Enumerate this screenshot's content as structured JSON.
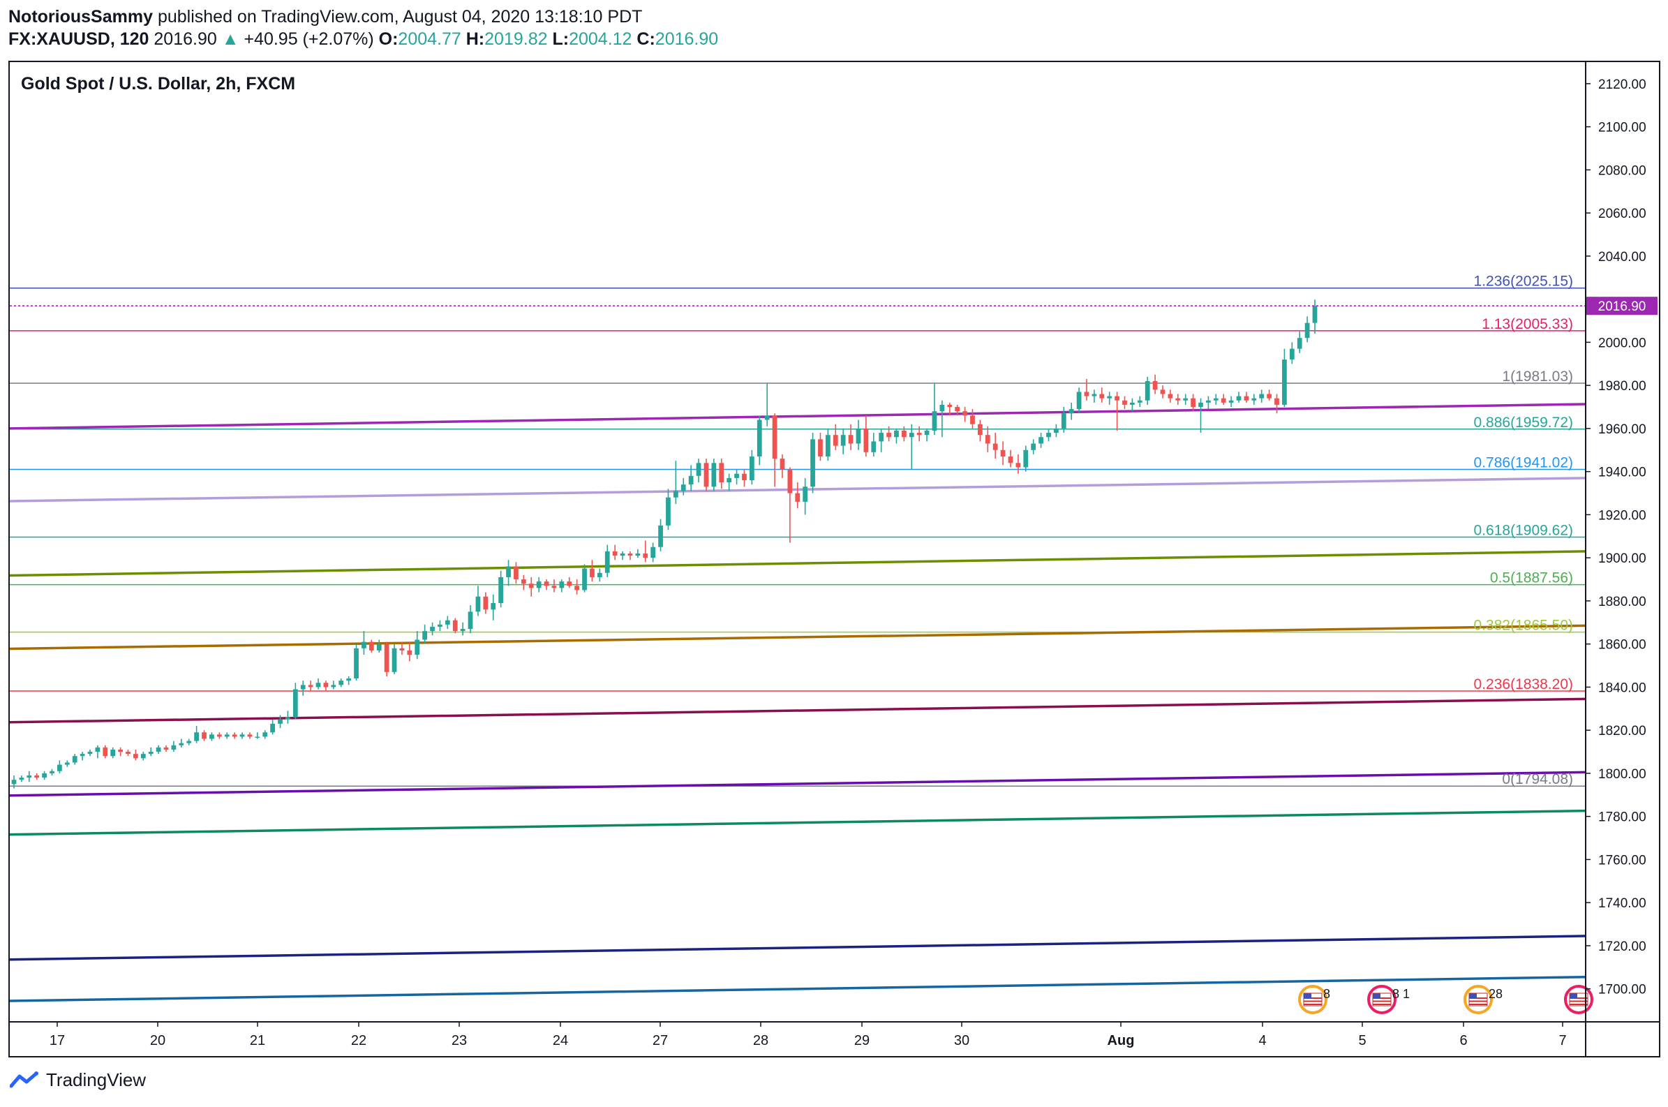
{
  "header": {
    "author": "NotoriousSammy",
    "published_text": "published on TradingView.com, August 04, 2020 13:18:10 PDT",
    "symbol": "FX:XAUUSD, 120",
    "last": "2016.90",
    "change_arrow": "▲",
    "change": "+40.95 (+2.07%)",
    "o_label": "O:",
    "o": "2004.77",
    "h_label": "H:",
    "h": "2019.82",
    "l_label": "L:",
    "l": "2004.12",
    "c_label": "C:",
    "c": "2016.90"
  },
  "chart_title": "Gold Spot / U.S. Dollar, 2h, FXCM",
  "footer": {
    "brand": "TradingView",
    "logo_icon": "tradingview-logo-icon"
  },
  "colors": {
    "up": "#26a69a",
    "down": "#ef5350",
    "price_label": "#9c27b0"
  },
  "chart_data": {
    "type": "candlestick",
    "title": "Gold Spot / U.S. Dollar, 2h, FXCM",
    "ylim": [
      1685,
      2130
    ],
    "y_ticks": [
      "2120.00",
      "2100.00",
      "2080.00",
      "2060.00",
      "2040.00",
      "2020.00",
      "2000.00",
      "1980.00",
      "1960.00",
      "1940.00",
      "1920.00",
      "1900.00",
      "1880.00",
      "1860.00",
      "1840.00",
      "1820.00",
      "1800.00",
      "1780.00",
      "1760.00",
      "1740.00",
      "1720.00",
      "1700.00"
    ],
    "x_ticks": [
      "17",
      "20",
      "21",
      "22",
      "23",
      "24",
      "27",
      "28",
      "29",
      "30",
      "Aug",
      "4",
      "5",
      "6",
      "7"
    ],
    "current_price": "2016.90",
    "current_price_color": "#9c27b0",
    "fib_levels": [
      {
        "label": "1.236(2025.15)",
        "value": 2025.15,
        "color": "#3f51b5"
      },
      {
        "label": "1.13(2005.33)",
        "value": 2005.33,
        "color": "#e91e63"
      },
      {
        "label": "1(1981.03)",
        "value": 1981.03,
        "color": "#787b86"
      },
      {
        "label": "0.886(1959.72)",
        "value": 1959.72,
        "color": "#26a69a"
      },
      {
        "label": "0.786(1941.02)",
        "value": 1941.02,
        "color": "#2196f3"
      },
      {
        "label": "0.618(1909.62)",
        "value": 1909.62,
        "color": "#26a69a"
      },
      {
        "label": "0.5(1887.56)",
        "value": 1887.56,
        "color": "#4caf50"
      },
      {
        "label": "0.382(1865.50)",
        "value": 1865.5,
        "color": "#9cca3b"
      },
      {
        "label": "0.236(1838.20)",
        "value": 1838.2,
        "color": "#f23645"
      },
      {
        "label": "0(1794.08)",
        "value": 1794.08,
        "color": "#787b86"
      }
    ],
    "trend_lines": [
      {
        "start": 1960,
        "end": 1971.3,
        "color": "#9c27b0"
      },
      {
        "start": 1926.3,
        "end": 1937,
        "color": "#b39ddb"
      },
      {
        "start": 1891.8,
        "end": 1903,
        "color": "#6b8e00"
      },
      {
        "start": 1857.8,
        "end": 1868.5,
        "color": "#a86b00"
      },
      {
        "start": 1823.7,
        "end": 1834.5,
        "color": "#880e4f"
      },
      {
        "start": 1789.7,
        "end": 1800.5,
        "color": "#6a0dad"
      },
      {
        "start": 1771.6,
        "end": 1782.6,
        "color": "#0b8a62"
      },
      {
        "start": 1713.6,
        "end": 1724.5,
        "color": "#1a237e"
      },
      {
        "start": 1694.4,
        "end": 1705.5,
        "color": "#1565a0"
      }
    ],
    "event_icons": [
      {
        "name": "us-flag-icon",
        "text": "8",
        "color": "#f5a623"
      },
      {
        "name": "us-flag-icon",
        "text": "8 1",
        "color": "#e91e63"
      },
      {
        "name": "us-flag-icon",
        "text": "28",
        "color": "#f5a623"
      },
      {
        "name": "us-flag-icon",
        "text": "",
        "color": "#e91e63"
      }
    ],
    "ohlc": [
      [
        1795,
        1799,
        1793,
        1797
      ],
      [
        1797,
        1799,
        1796,
        1798
      ],
      [
        1798,
        1801,
        1796,
        1799
      ],
      [
        1799,
        1800,
        1797,
        1798
      ],
      [
        1798,
        1801,
        1797,
        1800
      ],
      [
        1800,
        1802,
        1799,
        1801
      ],
      [
        1801,
        1806,
        1800,
        1804
      ],
      [
        1804,
        1806,
        1803,
        1805
      ],
      [
        1805,
        1809,
        1804,
        1808
      ],
      [
        1808,
        1810,
        1806,
        1809
      ],
      [
        1809,
        1811,
        1808,
        1810
      ],
      [
        1810,
        1813,
        1807,
        1812
      ],
      [
        1812,
        1813,
        1807,
        1808
      ],
      [
        1808,
        1812,
        1807,
        1811
      ],
      [
        1811,
        1812,
        1808,
        1810
      ],
      [
        1810,
        1811,
        1808,
        1809
      ],
      [
        1809,
        1811,
        1806,
        1807
      ],
      [
        1807,
        1810,
        1806,
        1809
      ],
      [
        1809,
        1812,
        1808,
        1810
      ],
      [
        1810,
        1813,
        1809,
        1812
      ],
      [
        1812,
        1813,
        1810,
        1811
      ],
      [
        1811,
        1815,
        1810,
        1813
      ],
      [
        1813,
        1816,
        1812,
        1814
      ],
      [
        1814,
        1816,
        1813,
        1815
      ],
      [
        1815,
        1822,
        1814,
        1819
      ],
      [
        1819,
        1820,
        1815,
        1816
      ],
      [
        1816,
        1819,
        1815,
        1818
      ],
      [
        1818,
        1819,
        1816,
        1817
      ],
      [
        1817,
        1819,
        1816,
        1818
      ],
      [
        1818,
        1819,
        1816,
        1817
      ],
      [
        1817,
        1819,
        1816,
        1818
      ],
      [
        1818,
        1819,
        1816,
        1817
      ],
      [
        1817,
        1819,
        1816,
        1817
      ],
      [
        1817,
        1820,
        1816,
        1819
      ],
      [
        1819,
        1825,
        1818,
        1823
      ],
      [
        1823,
        1827,
        1821,
        1825
      ],
      [
        1825,
        1829,
        1823,
        1826
      ],
      [
        1826,
        1842,
        1825,
        1839
      ],
      [
        1839,
        1843,
        1836,
        1841
      ],
      [
        1841,
        1843,
        1838,
        1840
      ],
      [
        1840,
        1844,
        1839,
        1842
      ],
      [
        1842,
        1843,
        1838,
        1840
      ],
      [
        1840,
        1843,
        1839,
        1841
      ],
      [
        1841,
        1844,
        1840,
        1843
      ],
      [
        1843,
        1845,
        1841,
        1844
      ],
      [
        1844,
        1860,
        1843,
        1858
      ],
      [
        1858,
        1866,
        1855,
        1861
      ],
      [
        1861,
        1862,
        1856,
        1857
      ],
      [
        1857,
        1862,
        1856,
        1860
      ],
      [
        1860,
        1861,
        1845,
        1847
      ],
      [
        1847,
        1860,
        1846,
        1858
      ],
      [
        1858,
        1861,
        1855,
        1857
      ],
      [
        1857,
        1861,
        1852,
        1855
      ],
      [
        1855,
        1866,
        1853,
        1862
      ],
      [
        1862,
        1869,
        1860,
        1866
      ],
      [
        1866,
        1870,
        1864,
        1868
      ],
      [
        1868,
        1871,
        1866,
        1869
      ],
      [
        1869,
        1873,
        1867,
        1871
      ],
      [
        1871,
        1872,
        1865,
        1866
      ],
      [
        1866,
        1870,
        1864,
        1867
      ],
      [
        1867,
        1878,
        1865,
        1875
      ],
      [
        1875,
        1887,
        1873,
        1882
      ],
      [
        1882,
        1884,
        1874,
        1876
      ],
      [
        1876,
        1883,
        1871,
        1879
      ],
      [
        1879,
        1894,
        1877,
        1891
      ],
      [
        1891,
        1899,
        1887,
        1896
      ],
      [
        1896,
        1898,
        1888,
        1890
      ],
      [
        1890,
        1892,
        1885,
        1888
      ],
      [
        1888,
        1891,
        1882,
        1886
      ],
      [
        1886,
        1891,
        1884,
        1889
      ],
      [
        1889,
        1890,
        1885,
        1887
      ],
      [
        1887,
        1890,
        1884,
        1886
      ],
      [
        1886,
        1890,
        1884,
        1889
      ],
      [
        1889,
        1891,
        1886,
        1887
      ],
      [
        1887,
        1890,
        1883,
        1885
      ],
      [
        1885,
        1897,
        1884,
        1895
      ],
      [
        1895,
        1899,
        1889,
        1891
      ],
      [
        1891,
        1895,
        1889,
        1893
      ],
      [
        1893,
        1906,
        1891,
        1903
      ],
      [
        1903,
        1906,
        1899,
        1901
      ],
      [
        1901,
        1903,
        1899,
        1902
      ],
      [
        1902,
        1903,
        1899,
        1901
      ],
      [
        1901,
        1904,
        1900,
        1902
      ],
      [
        1902,
        1908,
        1898,
        1900
      ],
      [
        1900,
        1907,
        1898,
        1905
      ],
      [
        1905,
        1918,
        1903,
        1915
      ],
      [
        1915,
        1932,
        1913,
        1928
      ],
      [
        1928,
        1945,
        1925,
        1931
      ],
      [
        1931,
        1937,
        1929,
        1934
      ],
      [
        1934,
        1943,
        1931,
        1938
      ],
      [
        1938,
        1946,
        1935,
        1944
      ],
      [
        1944,
        1946,
        1931,
        1933
      ],
      [
        1933,
        1946,
        1931,
        1944
      ],
      [
        1944,
        1946,
        1932,
        1935
      ],
      [
        1935,
        1939,
        1931,
        1937
      ],
      [
        1937,
        1941,
        1934,
        1939
      ],
      [
        1939,
        1941,
        1933,
        1936
      ],
      [
        1936,
        1950,
        1934,
        1947
      ],
      [
        1947,
        1966,
        1943,
        1964
      ],
      [
        1964,
        1981,
        1961,
        1966
      ],
      [
        1966,
        1967,
        1933,
        1946
      ],
      [
        1946,
        1948,
        1937,
        1941
      ],
      [
        1941,
        1942,
        1907,
        1930
      ],
      [
        1930,
        1935,
        1923,
        1926
      ],
      [
        1926,
        1937,
        1920,
        1933
      ],
      [
        1933,
        1958,
        1930,
        1955
      ],
      [
        1955,
        1958,
        1945,
        1947
      ],
      [
        1947,
        1960,
        1945,
        1957
      ],
      [
        1957,
        1962,
        1950,
        1952
      ],
      [
        1952,
        1960,
        1948,
        1957
      ],
      [
        1957,
        1962,
        1950,
        1953
      ],
      [
        1953,
        1964,
        1950,
        1960
      ],
      [
        1960,
        1966,
        1947,
        1949
      ],
      [
        1949,
        1958,
        1947,
        1954
      ],
      [
        1954,
        1960,
        1949,
        1958
      ],
      [
        1958,
        1961,
        1954,
        1956
      ],
      [
        1956,
        1960,
        1953,
        1959
      ],
      [
        1959,
        1961,
        1954,
        1956
      ],
      [
        1956,
        1962,
        1941,
        1958
      ],
      [
        1958,
        1961,
        1954,
        1957
      ],
      [
        1957,
        1960,
        1954,
        1959
      ],
      [
        1959,
        1981,
        1957,
        1968
      ],
      [
        1968,
        1973,
        1956,
        1971
      ],
      [
        1971,
        1972,
        1966,
        1970
      ],
      [
        1970,
        1971,
        1966,
        1968
      ],
      [
        1968,
        1970,
        1963,
        1966
      ],
      [
        1966,
        1969,
        1960,
        1962
      ],
      [
        1962,
        1964,
        1954,
        1957
      ],
      [
        1957,
        1961,
        1949,
        1953
      ],
      [
        1953,
        1958,
        1946,
        1950
      ],
      [
        1950,
        1954,
        1943,
        1947
      ],
      [
        1947,
        1950,
        1942,
        1944
      ],
      [
        1944,
        1948,
        1939,
        1942
      ],
      [
        1942,
        1952,
        1940,
        1950
      ],
      [
        1950,
        1955,
        1948,
        1953
      ],
      [
        1953,
        1958,
        1951,
        1956
      ],
      [
        1956,
        1960,
        1954,
        1958
      ],
      [
        1958,
        1962,
        1956,
        1960
      ],
      [
        1960,
        1970,
        1958,
        1967
      ],
      [
        1967,
        1972,
        1964,
        1969
      ],
      [
        1969,
        1979,
        1967,
        1977
      ],
      [
        1977,
        1983,
        1973,
        1975
      ],
      [
        1975,
        1978,
        1972,
        1976
      ],
      [
        1976,
        1979,
        1972,
        1974
      ],
      [
        1974,
        1977,
        1971,
        1975
      ],
      [
        1975,
        1977,
        1959,
        1973
      ],
      [
        1973,
        1975,
        1969,
        1971
      ],
      [
        1971,
        1974,
        1968,
        1972
      ],
      [
        1972,
        1975,
        1970,
        1973
      ],
      [
        1973,
        1984,
        1971,
        1982
      ],
      [
        1982,
        1985,
        1976,
        1978
      ],
      [
        1978,
        1980,
        1974,
        1976
      ],
      [
        1976,
        1978,
        1972,
        1974
      ],
      [
        1974,
        1976,
        1971,
        1973
      ],
      [
        1973,
        1976,
        1971,
        1974
      ],
      [
        1974,
        1976,
        1968,
        1970
      ],
      [
        1970,
        1974,
        1958,
        1972
      ],
      [
        1972,
        1975,
        1969,
        1973
      ],
      [
        1973,
        1976,
        1971,
        1974
      ],
      [
        1974,
        1976,
        1971,
        1972
      ],
      [
        1972,
        1975,
        1970,
        1973
      ],
      [
        1973,
        1977,
        1972,
        1975
      ],
      [
        1975,
        1977,
        1972,
        1973
      ],
      [
        1973,
        1976,
        1971,
        1974
      ],
      [
        1974,
        1978,
        1972,
        1976
      ],
      [
        1976,
        1978,
        1973,
        1974
      ],
      [
        1974,
        1976,
        1967,
        1971
      ],
      [
        1971,
        1997,
        1970,
        1992
      ],
      [
        1992,
        2000,
        1990,
        1997
      ],
      [
        1997,
        2005,
        1995,
        2002
      ],
      [
        2002,
        2012,
        2000,
        2009
      ],
      [
        2009,
        2019.8,
        2004,
        2016.9
      ]
    ]
  }
}
